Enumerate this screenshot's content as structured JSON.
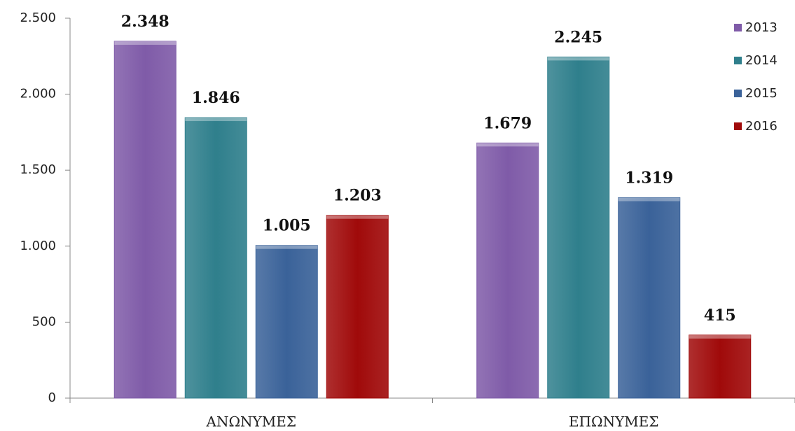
{
  "chart_data": {
    "type": "bar",
    "categories": [
      "ΑΝΩΝΥΜΕΣ",
      "ΕΠΩΝΥΜΕΣ"
    ],
    "series": [
      {
        "name": "2013",
        "color": "#7f5ba8",
        "values": [
          2348,
          1679
        ],
        "value_labels": [
          "2.348",
          "1.679"
        ]
      },
      {
        "name": "2014",
        "color": "#2f7f8c",
        "values": [
          1846,
          2245
        ],
        "value_labels": [
          "1.846",
          "2.245"
        ]
      },
      {
        "name": "2015",
        "color": "#3a6299",
        "values": [
          1005,
          1319
        ],
        "value_labels": [
          "1.005",
          "1.319"
        ]
      },
      {
        "name": "2016",
        "color": "#a00a0a",
        "values": [
          1203,
          415
        ],
        "value_labels": [
          "1.203",
          "415"
        ]
      }
    ],
    "ylim": [
      0,
      2500
    ],
    "yticks": [
      0,
      500,
      {
        "value": 1000,
        "label": "1.000"
      },
      {
        "value": 1500,
        "label": "1.500"
      },
      {
        "value": 2000,
        "label": "2.000"
      },
      {
        "value": 2500,
        "label": "2.500"
      }
    ],
    "legend": "upper right"
  }
}
